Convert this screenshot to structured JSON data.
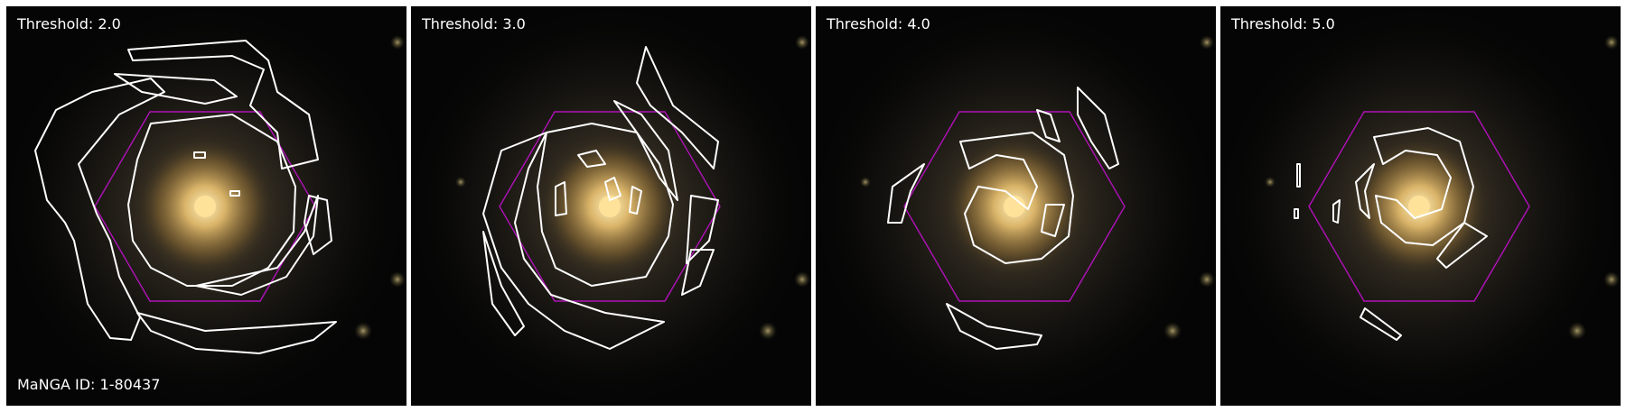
{
  "panels": [
    {
      "threshold_label": "Threshold: 2.0"
    },
    {
      "threshold_label": "Threshold: 3.0"
    },
    {
      "threshold_label": "Threshold: 4.0"
    },
    {
      "threshold_label": "Threshold: 5.0"
    }
  ],
  "manga_id_label": "MaNGA ID: 1-80437",
  "colors": {
    "contour": "#ffffff",
    "hexagon": "#b012b8",
    "galaxy_core": "#ffe29a",
    "background": "#050505"
  }
}
